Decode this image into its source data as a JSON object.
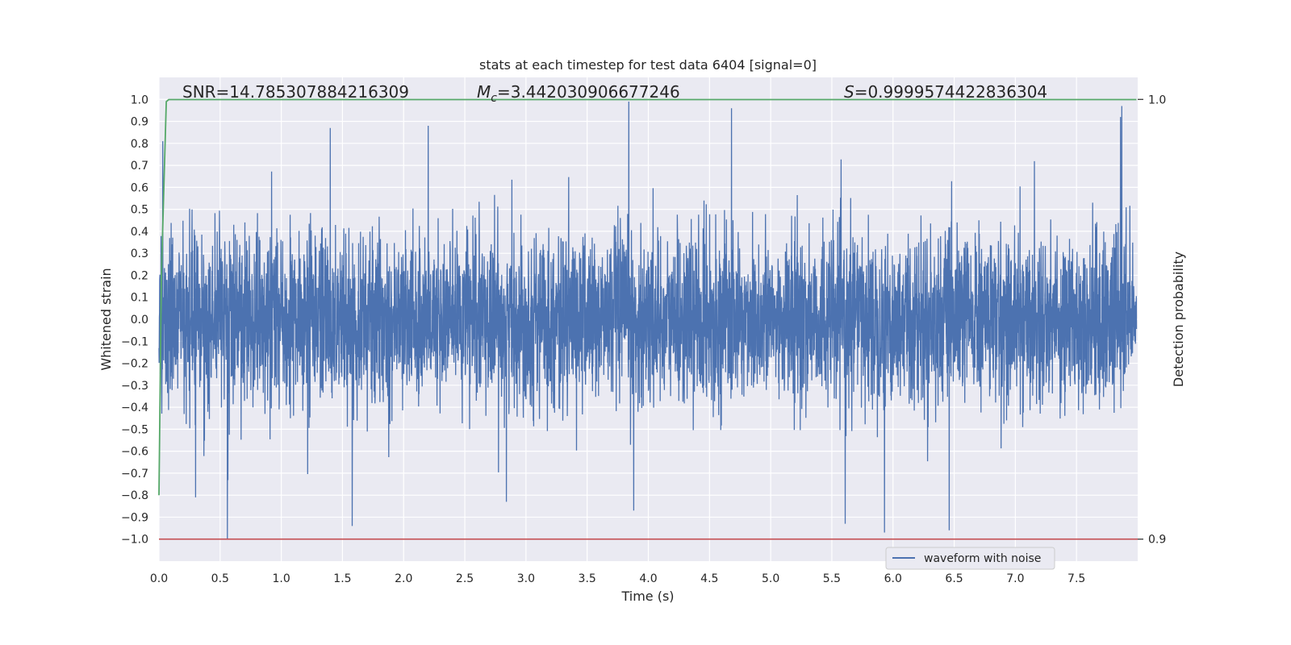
{
  "chart_data": {
    "type": "line",
    "title": "stats at each timestep for test data 6404 [signal=0]",
    "xlabel": "Time (s)",
    "ylabel": "Whitened strain",
    "y2label": "Detection probability",
    "xlim": [
      0,
      8
    ],
    "ylim": [
      -1.1,
      1.1
    ],
    "y2lim": [
      0.9,
      1.0
    ],
    "x_ticks": [
      "0.0",
      "0.5",
      "1.0",
      "1.5",
      "2.0",
      "2.5",
      "3.0",
      "3.5",
      "4.0",
      "4.5",
      "5.0",
      "5.5",
      "6.0",
      "6.5",
      "7.0",
      "7.5"
    ],
    "x_tick_values": [
      0.0,
      0.5,
      1.0,
      1.5,
      2.0,
      2.5,
      3.0,
      3.5,
      4.0,
      4.5,
      5.0,
      5.5,
      6.0,
      6.5,
      7.0,
      7.5
    ],
    "y_ticks": [
      "1.0",
      "0.9",
      "0.8",
      "0.7",
      "0.6",
      "0.5",
      "0.4",
      "0.3",
      "0.2",
      "0.1",
      "0.0",
      "−0.1",
      "−0.2",
      "−0.3",
      "−0.4",
      "−0.5",
      "−0.6",
      "−0.7",
      "−0.8",
      "−0.9",
      "−1.0"
    ],
    "y_tick_values": [
      1.0,
      0.9,
      0.8,
      0.7,
      0.6,
      0.5,
      0.4,
      0.3,
      0.2,
      0.1,
      0.0,
      -0.1,
      -0.2,
      -0.3,
      -0.4,
      -0.5,
      -0.6,
      -0.7,
      -0.8,
      -0.9,
      -1.0
    ],
    "y2_ticks": [
      "1.0",
      "0.9"
    ],
    "y2_tick_values": [
      1.0,
      0.9
    ],
    "annotations": {
      "snr": "SNR=14.785307884216309",
      "mc_symbol": "M",
      "mc_sub": "c",
      "mc_value": "=3.442030906677246",
      "s_symbol": "S",
      "s_value": "=0.9999574422836304"
    },
    "series": [
      {
        "name": "waveform with noise",
        "color": "#4c72b0",
        "x_end": 7.99,
        "typical_amplitude": 0.38,
        "peaks": [
          {
            "x": 0.03,
            "y": 0.81
          },
          {
            "x": 0.56,
            "y": -1.0
          },
          {
            "x": 1.4,
            "y": 0.87
          },
          {
            "x": 1.58,
            "y": -0.94
          },
          {
            "x": 2.2,
            "y": 0.88
          },
          {
            "x": 3.84,
            "y": 0.99
          },
          {
            "x": 3.88,
            "y": -0.87
          },
          {
            "x": 4.68,
            "y": 0.96
          },
          {
            "x": 5.93,
            "y": -0.97
          },
          {
            "x": 6.46,
            "y": -0.96
          },
          {
            "x": 7.87,
            "y": 0.97
          },
          {
            "x": 7.86,
            "y": 0.92
          },
          {
            "x": 0.3,
            "y": -0.81
          },
          {
            "x": 2.84,
            "y": -0.83
          },
          {
            "x": 5.61,
            "y": -0.93
          }
        ]
      },
      {
        "name": "",
        "color": "#55a868",
        "axis": "right",
        "x": [
          0.0,
          0.02,
          0.06,
          0.08,
          7.99
        ],
        "values": [
          0.91,
          0.96,
          0.9995,
          0.99996,
          0.99996
        ]
      }
    ],
    "threshold": {
      "axis": "right",
      "value": 0.9,
      "color": "#c44e52"
    },
    "legend": {
      "placement": "bottom-right",
      "entries": [
        "waveform with noise"
      ]
    },
    "grid": true,
    "background": "#eaeaf2"
  }
}
